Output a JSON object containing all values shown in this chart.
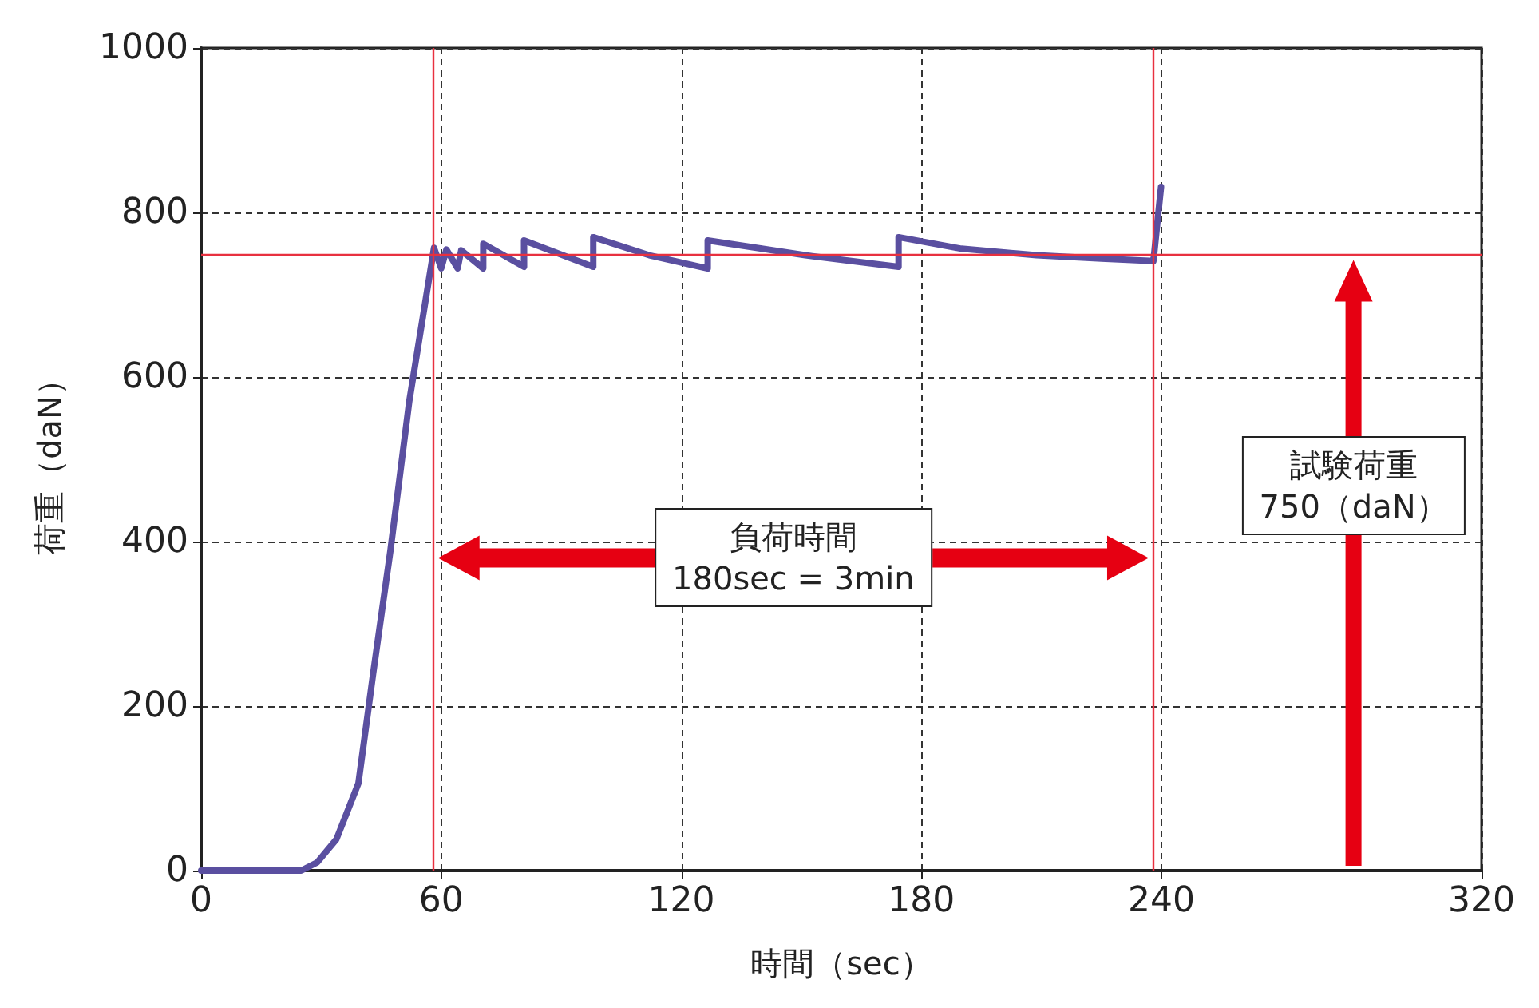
{
  "chart_data": {
    "type": "line",
    "xlabel": "時間（sec）",
    "ylabel": "荷重（daN）",
    "xlim": [
      0,
      320
    ],
    "xticks": [
      0,
      60,
      120,
      180,
      240,
      320
    ],
    "ylim": [
      0,
      1000
    ],
    "yticks": [
      0,
      200,
      400,
      600,
      800,
      1000
    ],
    "grid": true,
    "line_style": "solid",
    "marker": "none",
    "series": [
      {
        "color": "#5a4fa0",
        "x": [
          0,
          25,
          29,
          33.8,
          39.3,
          43,
          47.3,
          52,
          58.2,
          60,
          61.3,
          64.1,
          65,
          70.5,
          70.5,
          80.7,
          80.7,
          98,
          98,
          112,
          126.6,
          126.6,
          151,
          174.3,
          174.3,
          190,
          208.8,
          225,
          238,
          239.9
        ],
        "values": [
          0,
          0,
          10,
          38,
          106,
          240,
          389,
          570,
          757,
          732,
          755,
          732,
          754,
          732,
          762,
          734,
          766,
          734,
          770,
          748,
          732,
          766,
          748,
          734,
          770,
          756,
          748,
          744,
          741,
          831
        ]
      }
    ],
    "ref_lines": [
      {
        "axis": "y",
        "value": 750,
        "color": "#e8303f"
      },
      {
        "axis": "x",
        "value": 58,
        "color": "#e8303f"
      },
      {
        "axis": "x",
        "value": 238,
        "color": "#e8303f"
      }
    ],
    "annotations": [
      "負荷時間\n180sec = 3min",
      "試験荷重\n750（daN）"
    ]
  }
}
